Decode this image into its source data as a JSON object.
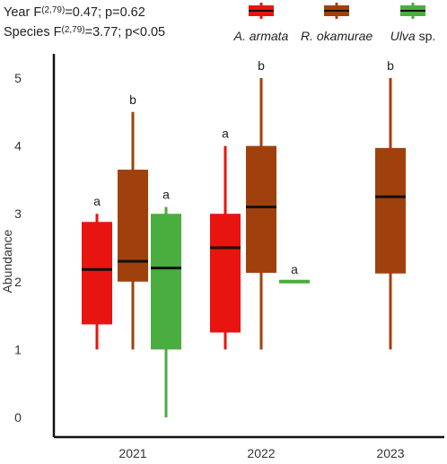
{
  "stats": {
    "year": {
      "prefix": "Year F",
      "df": "(2,79)",
      "rest": "=0.47; p=0.62"
    },
    "species": {
      "prefix": "Species F",
      "df": "(2,79)",
      "rest": "=3.77; p<0.05"
    }
  },
  "chart_data": {
    "type": "boxplot",
    "ylabel": "Abundance",
    "ylim": [
      0,
      5.5
    ],
    "yticks": [
      "0",
      "1",
      "2",
      "3",
      "4",
      "5"
    ],
    "categories": [
      "2021",
      "2022",
      "2023"
    ],
    "legend_position": "top-right",
    "grid": false,
    "series": [
      {
        "name": "A. armata",
        "name_italic": "A. armata",
        "name_plain": "",
        "color": "#e8140f",
        "boxes": [
          {
            "category": "2021",
            "min": 1.0,
            "q1": 1.37,
            "median": 2.18,
            "q3": 2.88,
            "max": 3.0,
            "letter": "a"
          },
          {
            "category": "2022",
            "min": 1.0,
            "q1": 1.25,
            "median": 2.5,
            "q3": 3.0,
            "max": 4.0,
            "letter": "a"
          }
        ]
      },
      {
        "name": "R. okamurae",
        "name_italic": "R. okamurae",
        "name_plain": "",
        "color": "#a0410d",
        "boxes": [
          {
            "category": "2021",
            "min": 1.0,
            "q1": 2.0,
            "median": 2.3,
            "q3": 3.65,
            "max": 4.5,
            "letter": "b"
          },
          {
            "category": "2022",
            "min": 1.0,
            "q1": 2.13,
            "median": 3.1,
            "q3": 4.0,
            "max": 5.0,
            "letter": "b"
          },
          {
            "category": "2023",
            "min": 1.0,
            "q1": 2.12,
            "median": 3.25,
            "q3": 3.97,
            "max": 5.0,
            "letter": "b"
          }
        ]
      },
      {
        "name": "Ulva sp.",
        "name_italic": "Ulva",
        "name_plain": " sp.",
        "color": "#4aad3f",
        "boxes": [
          {
            "category": "2021",
            "min": 0.0,
            "q1": 1.0,
            "median": 2.2,
            "q3": 3.0,
            "max": 3.1,
            "letter": "a"
          },
          {
            "category": "2022",
            "min": 2.0,
            "q1": 2.0,
            "median": 2.0,
            "q3": 2.0,
            "max": 2.0,
            "letter": "a"
          }
        ]
      }
    ]
  }
}
